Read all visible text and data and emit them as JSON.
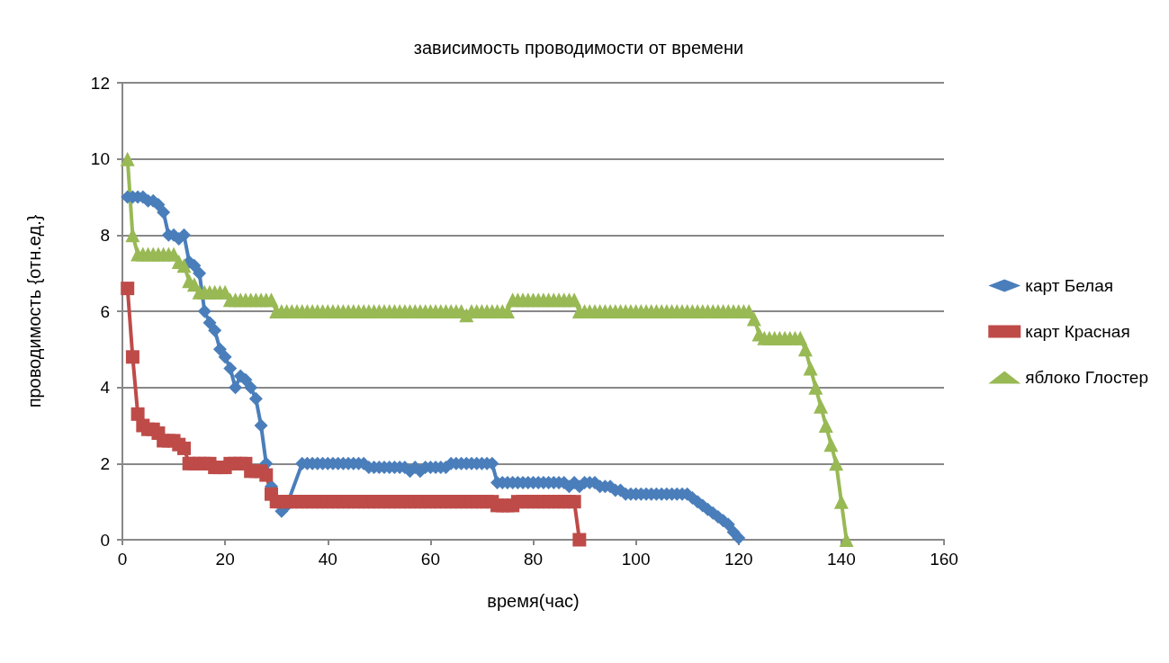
{
  "chart_data": {
    "type": "line",
    "title": "зависимость проводимости от времени",
    "xlabel": "время(час)",
    "ylabel": "проводимость {отн.ед.}",
    "xlim": [
      0,
      160
    ],
    "xticks": [
      0,
      20,
      40,
      60,
      80,
      100,
      120,
      140,
      160
    ],
    "ylim": [
      0,
      12
    ],
    "yticks": [
      0,
      2,
      4,
      6,
      8,
      10,
      12
    ],
    "grid": "y",
    "legend": "right",
    "line_style": "solid",
    "series": [
      {
        "name": "карт Белая",
        "color": "#4a7ebb",
        "marker": "diamond",
        "x": [
          1,
          2,
          3,
          4,
          5,
          6,
          7,
          8,
          9,
          10,
          11,
          12,
          13,
          14,
          15,
          16,
          17,
          18,
          19,
          20,
          21,
          22,
          23,
          24,
          25,
          26,
          27,
          28,
          29,
          31,
          32,
          35,
          36,
          37,
          38,
          39,
          40,
          41,
          42,
          43,
          44,
          45,
          46,
          47,
          48,
          49,
          50,
          51,
          52,
          53,
          54,
          55,
          56,
          57,
          58,
          59,
          60,
          61,
          62,
          63,
          64,
          65,
          66,
          67,
          68,
          69,
          70,
          71,
          72,
          73,
          74,
          75,
          76,
          77,
          78,
          79,
          80,
          81,
          82,
          83,
          84,
          85,
          86,
          87,
          88,
          89,
          90,
          91,
          92,
          93,
          94,
          95,
          96,
          97,
          98,
          99,
          100,
          101,
          102,
          103,
          104,
          105,
          106,
          107,
          108,
          109,
          110,
          111,
          112,
          113,
          114,
          115,
          116,
          117,
          118,
          119,
          120
        ],
        "values": [
          9,
          9,
          9,
          9,
          8.9,
          8.9,
          8.8,
          8.6,
          8,
          8,
          7.9,
          8,
          7.3,
          7.2,
          7,
          6,
          5.7,
          5.5,
          5,
          4.8,
          4.5,
          4,
          4.3,
          4.2,
          4,
          3.7,
          3,
          2,
          1.4,
          0.75,
          0.9,
          2,
          2,
          2,
          2,
          2,
          2,
          2,
          2,
          2,
          2,
          2,
          2,
          2,
          1.9,
          1.9,
          1.9,
          1.9,
          1.9,
          1.9,
          1.9,
          1.9,
          1.8,
          1.9,
          1.8,
          1.9,
          1.9,
          1.9,
          1.9,
          1.9,
          2,
          2,
          2,
          2,
          2,
          2,
          2,
          2,
          2,
          1.5,
          1.5,
          1.5,
          1.5,
          1.5,
          1.5,
          1.5,
          1.5,
          1.5,
          1.5,
          1.5,
          1.5,
          1.5,
          1.5,
          1.4,
          1.5,
          1.4,
          1.5,
          1.5,
          1.5,
          1.4,
          1.4,
          1.4,
          1.3,
          1.3,
          1.2,
          1.2,
          1.2,
          1.2,
          1.2,
          1.2,
          1.2,
          1.2,
          1.2,
          1.2,
          1.2,
          1.2,
          1.2,
          1.1,
          1,
          0.9,
          0.8,
          0.7,
          0.6,
          0.5,
          0.4,
          0.2,
          0.05
        ]
      },
      {
        "name": "карт Красная",
        "color": "#be4b48",
        "marker": "square",
        "x": [
          1,
          2,
          3,
          4,
          5,
          6,
          7,
          8,
          9,
          10,
          11,
          12,
          13,
          14,
          15,
          16,
          17,
          18,
          19,
          20,
          21,
          22,
          23,
          24,
          25,
          26,
          27,
          28,
          29,
          30,
          31,
          32,
          33,
          34,
          35,
          36,
          37,
          38,
          39,
          40,
          41,
          42,
          43,
          44,
          45,
          46,
          47,
          48,
          49,
          50,
          51,
          52,
          53,
          54,
          55,
          56,
          57,
          58,
          59,
          60,
          61,
          62,
          63,
          64,
          65,
          66,
          67,
          68,
          69,
          70,
          71,
          72,
          73,
          74,
          75,
          76,
          77,
          78,
          79,
          80,
          81,
          82,
          83,
          84,
          85,
          86,
          87,
          88,
          89
        ],
        "values": [
          6.6,
          4.8,
          3.3,
          3,
          2.9,
          2.9,
          2.8,
          2.6,
          2.6,
          2.6,
          2.5,
          2.4,
          2,
          2,
          2,
          2,
          2,
          1.9,
          1.9,
          1.9,
          2,
          2,
          2,
          2,
          1.8,
          1.8,
          1.8,
          1.7,
          1.2,
          1,
          1,
          1,
          1,
          1,
          1,
          1,
          1,
          1,
          1,
          1,
          1,
          1,
          1,
          1,
          1,
          1,
          1,
          1,
          1,
          1,
          1,
          1,
          1,
          1,
          1,
          1,
          1,
          1,
          1,
          1,
          1,
          1,
          1,
          1,
          1,
          1,
          1,
          1,
          1,
          1,
          1,
          1,
          0.9,
          0.9,
          0.9,
          0.9,
          1,
          1,
          1,
          1,
          1,
          1,
          1,
          1,
          1,
          1,
          1,
          1,
          0
        ]
      },
      {
        "name": "яблоко Глостер",
        "color": "#98b954",
        "marker": "triangle",
        "x": [
          1,
          2,
          3,
          4,
          5,
          6,
          7,
          8,
          9,
          10,
          11,
          12,
          13,
          14,
          15,
          16,
          17,
          18,
          19,
          20,
          21,
          22,
          23,
          24,
          25,
          26,
          27,
          28,
          29,
          30,
          31,
          32,
          33,
          34,
          35,
          36,
          37,
          38,
          39,
          40,
          41,
          42,
          43,
          44,
          45,
          46,
          47,
          48,
          49,
          50,
          51,
          52,
          53,
          54,
          55,
          56,
          57,
          58,
          59,
          60,
          61,
          62,
          63,
          64,
          65,
          66,
          67,
          68,
          69,
          70,
          71,
          72,
          73,
          74,
          75,
          76,
          77,
          78,
          79,
          80,
          81,
          82,
          83,
          84,
          85,
          86,
          87,
          88,
          89,
          90,
          91,
          92,
          93,
          94,
          95,
          96,
          97,
          98,
          99,
          100,
          101,
          102,
          103,
          104,
          105,
          106,
          107,
          108,
          109,
          110,
          111,
          112,
          113,
          114,
          115,
          116,
          117,
          118,
          119,
          120,
          121,
          122,
          123,
          124,
          125,
          126,
          127,
          128,
          129,
          130,
          131,
          132,
          133,
          134,
          135,
          136,
          137,
          138,
          139,
          140,
          141
        ],
        "values": [
          10,
          8,
          7.5,
          7.5,
          7.5,
          7.5,
          7.5,
          7.5,
          7.5,
          7.5,
          7.3,
          7.2,
          6.8,
          6.7,
          6.5,
          6.5,
          6.5,
          6.5,
          6.5,
          6.5,
          6.3,
          6.3,
          6.3,
          6.3,
          6.3,
          6.3,
          6.3,
          6.3,
          6.3,
          6,
          6,
          6,
          6,
          6,
          6,
          6,
          6,
          6,
          6,
          6,
          6,
          6,
          6,
          6,
          6,
          6,
          6,
          6,
          6,
          6,
          6,
          6,
          6,
          6,
          6,
          6,
          6,
          6,
          6,
          6,
          6,
          6,
          6,
          6,
          6,
          6,
          5.9,
          6,
          6,
          6,
          6,
          6,
          6,
          6,
          6,
          6.3,
          6.3,
          6.3,
          6.3,
          6.3,
          6.3,
          6.3,
          6.3,
          6.3,
          6.3,
          6.3,
          6.3,
          6.3,
          6,
          6,
          6,
          6,
          6,
          6,
          6,
          6,
          6,
          6,
          6,
          6,
          6,
          6,
          6,
          6,
          6,
          6,
          6,
          6,
          6,
          6,
          6,
          6,
          6,
          6,
          6,
          6,
          6,
          6,
          6,
          6,
          6,
          6,
          5.8,
          5.4,
          5.3,
          5.3,
          5.3,
          5.3,
          5.3,
          5.3,
          5.3,
          5.3,
          5,
          4.5,
          4,
          3.5,
          3,
          2.5,
          2,
          1,
          0
        ]
      }
    ]
  }
}
